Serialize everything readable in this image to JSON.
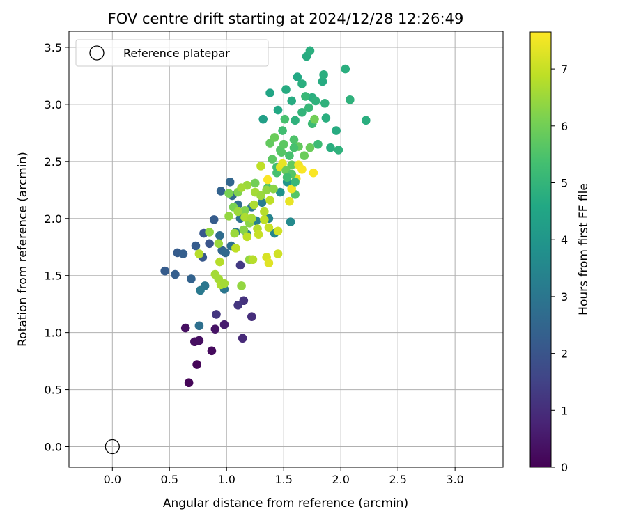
{
  "chart_data": {
    "type": "scatter",
    "title": "FOV centre drift starting at 2024/12/28 12:26:49",
    "xlabel": "Angular distance from reference (arcmin)",
    "ylabel": "Rotation from reference (arcmin)",
    "xlim": [
      -0.38,
      3.42
    ],
    "ylim": [
      -0.18,
      3.64
    ],
    "xticks": [
      0.0,
      0.5,
      1.0,
      1.5,
      2.0,
      2.5,
      3.0
    ],
    "xtick_labels": [
      "0.0",
      "0.5",
      "1.0",
      "1.5",
      "2.0",
      "2.5",
      "3.0"
    ],
    "yticks": [
      0.0,
      0.5,
      1.0,
      1.5,
      2.0,
      2.5,
      3.0,
      3.5
    ],
    "ytick_labels": [
      "0.0",
      "0.5",
      "1.0",
      "1.5",
      "2.0",
      "2.5",
      "3.0",
      "3.5"
    ],
    "grid": true,
    "legend": {
      "placement": "upper-left",
      "entries": [
        {
          "label": "Reference platepar",
          "marker": "open-circle"
        }
      ]
    },
    "reference_point": {
      "x": 0.0,
      "y": 0.0
    },
    "colorbar": {
      "label": "Hours from first FF file",
      "colormap": "viridis",
      "range": [
        0,
        7.65
      ],
      "ticks": [
        0,
        1,
        2,
        3,
        4,
        5,
        6,
        7
      ],
      "tick_labels": [
        "0",
        "1",
        "2",
        "3",
        "4",
        "5",
        "6",
        "7"
      ]
    },
    "series": [
      {
        "points": [
          [
            0.67,
            0.56,
            0.1
          ],
          [
            0.74,
            0.72,
            0.1
          ],
          [
            0.87,
            0.84,
            0.2
          ],
          [
            0.64,
            1.04,
            0.3
          ],
          [
            0.72,
            0.92,
            0.3
          ],
          [
            0.76,
            0.93,
            0.3
          ],
          [
            0.9,
            1.03,
            0.4
          ],
          [
            0.98,
            1.07,
            0.6
          ],
          [
            1.14,
            0.95,
            0.9
          ],
          [
            1.22,
            1.14,
            1.0
          ],
          [
            1.15,
            1.28,
            1.1
          ],
          [
            1.1,
            1.24,
            1.2
          ],
          [
            0.91,
            1.16,
            1.2
          ],
          [
            1.12,
            1.59,
            1.3
          ],
          [
            0.46,
            1.54,
            2.2
          ],
          [
            0.55,
            1.51,
            2.3
          ],
          [
            0.69,
            1.47,
            2.4
          ],
          [
            0.57,
            1.7,
            2.2
          ],
          [
            0.62,
            1.69,
            2.3
          ],
          [
            0.73,
            1.76,
            2.2
          ],
          [
            0.79,
            1.66,
            2.1
          ],
          [
            0.8,
            1.87,
            2.1
          ],
          [
            0.85,
            1.78,
            2.0
          ],
          [
            0.89,
            1.99,
            2.2
          ],
          [
            0.96,
            1.72,
            2.5
          ],
          [
            0.99,
            1.7,
            2.6
          ],
          [
            0.94,
            1.85,
            2.7
          ],
          [
            1.04,
            1.76,
            2.8
          ],
          [
            0.95,
            2.24,
            2.4
          ],
          [
            1.03,
            2.32,
            2.5
          ],
          [
            1.05,
            2.2,
            2.6
          ],
          [
            1.1,
            2.12,
            2.7
          ],
          [
            1.12,
            2.0,
            2.8
          ],
          [
            1.15,
            1.9,
            2.9
          ],
          [
            0.98,
            1.38,
            3.0
          ],
          [
            0.81,
            1.41,
            3.0
          ],
          [
            0.77,
            1.37,
            3.1
          ],
          [
            0.76,
            1.06,
            2.8
          ],
          [
            1.08,
            1.88,
            3.1
          ],
          [
            1.18,
            1.86,
            3.2
          ],
          [
            1.22,
            2.1,
            3.0
          ],
          [
            1.26,
            1.98,
            3.3
          ],
          [
            1.31,
            2.14,
            3.2
          ],
          [
            1.37,
            2.0,
            3.4
          ],
          [
            1.42,
            1.87,
            3.5
          ],
          [
            1.56,
            1.97,
            3.6
          ],
          [
            1.47,
            2.23,
            3.9
          ],
          [
            1.53,
            2.32,
            4.0
          ],
          [
            1.32,
            2.87,
            4.3
          ],
          [
            1.38,
            3.1,
            4.5
          ],
          [
            1.45,
            2.95,
            4.6
          ],
          [
            1.52,
            3.13,
            4.7
          ],
          [
            1.57,
            3.03,
            4.7
          ],
          [
            1.6,
            2.86,
            4.9
          ],
          [
            1.62,
            3.24,
            4.6
          ],
          [
            1.66,
            3.18,
            4.8
          ],
          [
            1.7,
            3.42,
            4.7
          ],
          [
            1.73,
            3.47,
            4.8
          ],
          [
            1.75,
            3.06,
            4.8
          ],
          [
            1.78,
            3.03,
            4.9
          ],
          [
            1.84,
            3.2,
            4.7
          ],
          [
            1.85,
            3.26,
            4.8
          ],
          [
            1.86,
            3.01,
            4.9
          ],
          [
            1.87,
            2.88,
            4.8
          ],
          [
            1.91,
            2.62,
            4.8
          ],
          [
            1.96,
            2.77,
            4.7
          ],
          [
            1.98,
            2.6,
            4.9
          ],
          [
            2.04,
            3.31,
            4.8
          ],
          [
            2.08,
            3.04,
            4.9
          ],
          [
            2.22,
            2.86,
            4.8
          ],
          [
            1.66,
            2.93,
            5.0
          ],
          [
            1.69,
            3.07,
            5.1
          ],
          [
            1.72,
            2.97,
            5.1
          ],
          [
            1.75,
            2.83,
            5.2
          ],
          [
            1.8,
            2.65,
            5.2
          ],
          [
            1.49,
            2.77,
            5.3
          ],
          [
            1.51,
            2.87,
            5.4
          ],
          [
            1.55,
            2.55,
            5.4
          ],
          [
            1.59,
            2.69,
            5.5
          ],
          [
            1.47,
            2.6,
            5.6
          ],
          [
            1.5,
            2.65,
            5.7
          ],
          [
            1.57,
            2.47,
            5.8
          ],
          [
            1.63,
            2.63,
            5.8
          ],
          [
            1.68,
            2.55,
            5.9
          ],
          [
            1.73,
            2.62,
            5.9
          ],
          [
            1.77,
            2.87,
            6.0
          ],
          [
            1.44,
            2.4,
            5.4
          ],
          [
            1.36,
            2.27,
            5.5
          ],
          [
            1.4,
            2.52,
            5.7
          ],
          [
            1.38,
            2.66,
            5.8
          ],
          [
            1.42,
            2.71,
            5.9
          ],
          [
            1.48,
            2.58,
            5.6
          ],
          [
            1.44,
            2.45,
            5.3
          ],
          [
            1.6,
            2.21,
            5.6
          ],
          [
            1.02,
            2.22,
            6.1
          ],
          [
            1.06,
            2.1,
            6.1
          ],
          [
            1.1,
            2.23,
            6.2
          ],
          [
            1.16,
            2.07,
            6.2
          ],
          [
            1.2,
            1.96,
            6.3
          ],
          [
            1.15,
            1.9,
            6.3
          ],
          [
            1.2,
            1.64,
            6.4
          ],
          [
            1.07,
            1.87,
            6.5
          ],
          [
            1.02,
            2.02,
            6.4
          ],
          [
            0.93,
            1.78,
            6.5
          ],
          [
            0.85,
            1.88,
            6.4
          ],
          [
            0.9,
            1.51,
            6.6
          ],
          [
            0.93,
            1.47,
            6.6
          ],
          [
            0.95,
            1.42,
            6.7
          ],
          [
            0.98,
            1.43,
            6.6
          ],
          [
            0.76,
            1.69,
            6.8
          ],
          [
            0.94,
            1.62,
            6.8
          ],
          [
            1.13,
            1.41,
            6.4
          ],
          [
            1.23,
            1.64,
            6.8
          ],
          [
            1.08,
            1.74,
            6.9
          ],
          [
            1.18,
            1.84,
            6.9
          ],
          [
            1.27,
            1.91,
            6.8
          ],
          [
            1.28,
            1.86,
            7.0
          ],
          [
            1.33,
            1.99,
            6.9
          ],
          [
            1.37,
            1.92,
            7.0
          ],
          [
            1.45,
            1.89,
            7.1
          ],
          [
            1.45,
            1.69,
            7.1
          ],
          [
            1.35,
            1.66,
            7.2
          ],
          [
            1.37,
            1.61,
            7.3
          ],
          [
            1.3,
            2.46,
            6.9
          ],
          [
            1.24,
            2.12,
            6.7
          ],
          [
            1.33,
            2.06,
            6.8
          ],
          [
            1.38,
            2.16,
            6.9
          ],
          [
            1.47,
            2.45,
            7.3
          ],
          [
            1.49,
            2.48,
            7.4
          ],
          [
            1.55,
            2.15,
            7.4
          ],
          [
            1.57,
            2.26,
            7.5
          ],
          [
            1.61,
            2.35,
            7.4
          ],
          [
            1.63,
            2.47,
            7.5
          ],
          [
            1.66,
            2.43,
            7.6
          ],
          [
            1.76,
            2.4,
            7.6
          ],
          [
            1.36,
            2.34,
            7.6
          ],
          [
            1.18,
            2.29,
            6.5
          ],
          [
            1.13,
            2.27,
            6.6
          ],
          [
            1.25,
            2.23,
            6.6
          ],
          [
            1.1,
            2.06,
            6.5
          ],
          [
            1.16,
            2.01,
            6.7
          ],
          [
            1.22,
            2.0,
            6.6
          ],
          [
            1.3,
            2.2,
            6.5
          ],
          [
            1.35,
            2.25,
            6.4
          ],
          [
            1.41,
            2.26,
            6.3
          ],
          [
            1.25,
            2.31,
            6.0
          ],
          [
            1.52,
            2.42,
            5.9
          ],
          [
            1.57,
            2.39,
            5.6
          ],
          [
            1.59,
            2.62,
            5.4
          ],
          [
            1.6,
            2.32,
            5.1
          ],
          [
            1.53,
            2.36,
            5.3
          ]
        ]
      }
    ]
  }
}
